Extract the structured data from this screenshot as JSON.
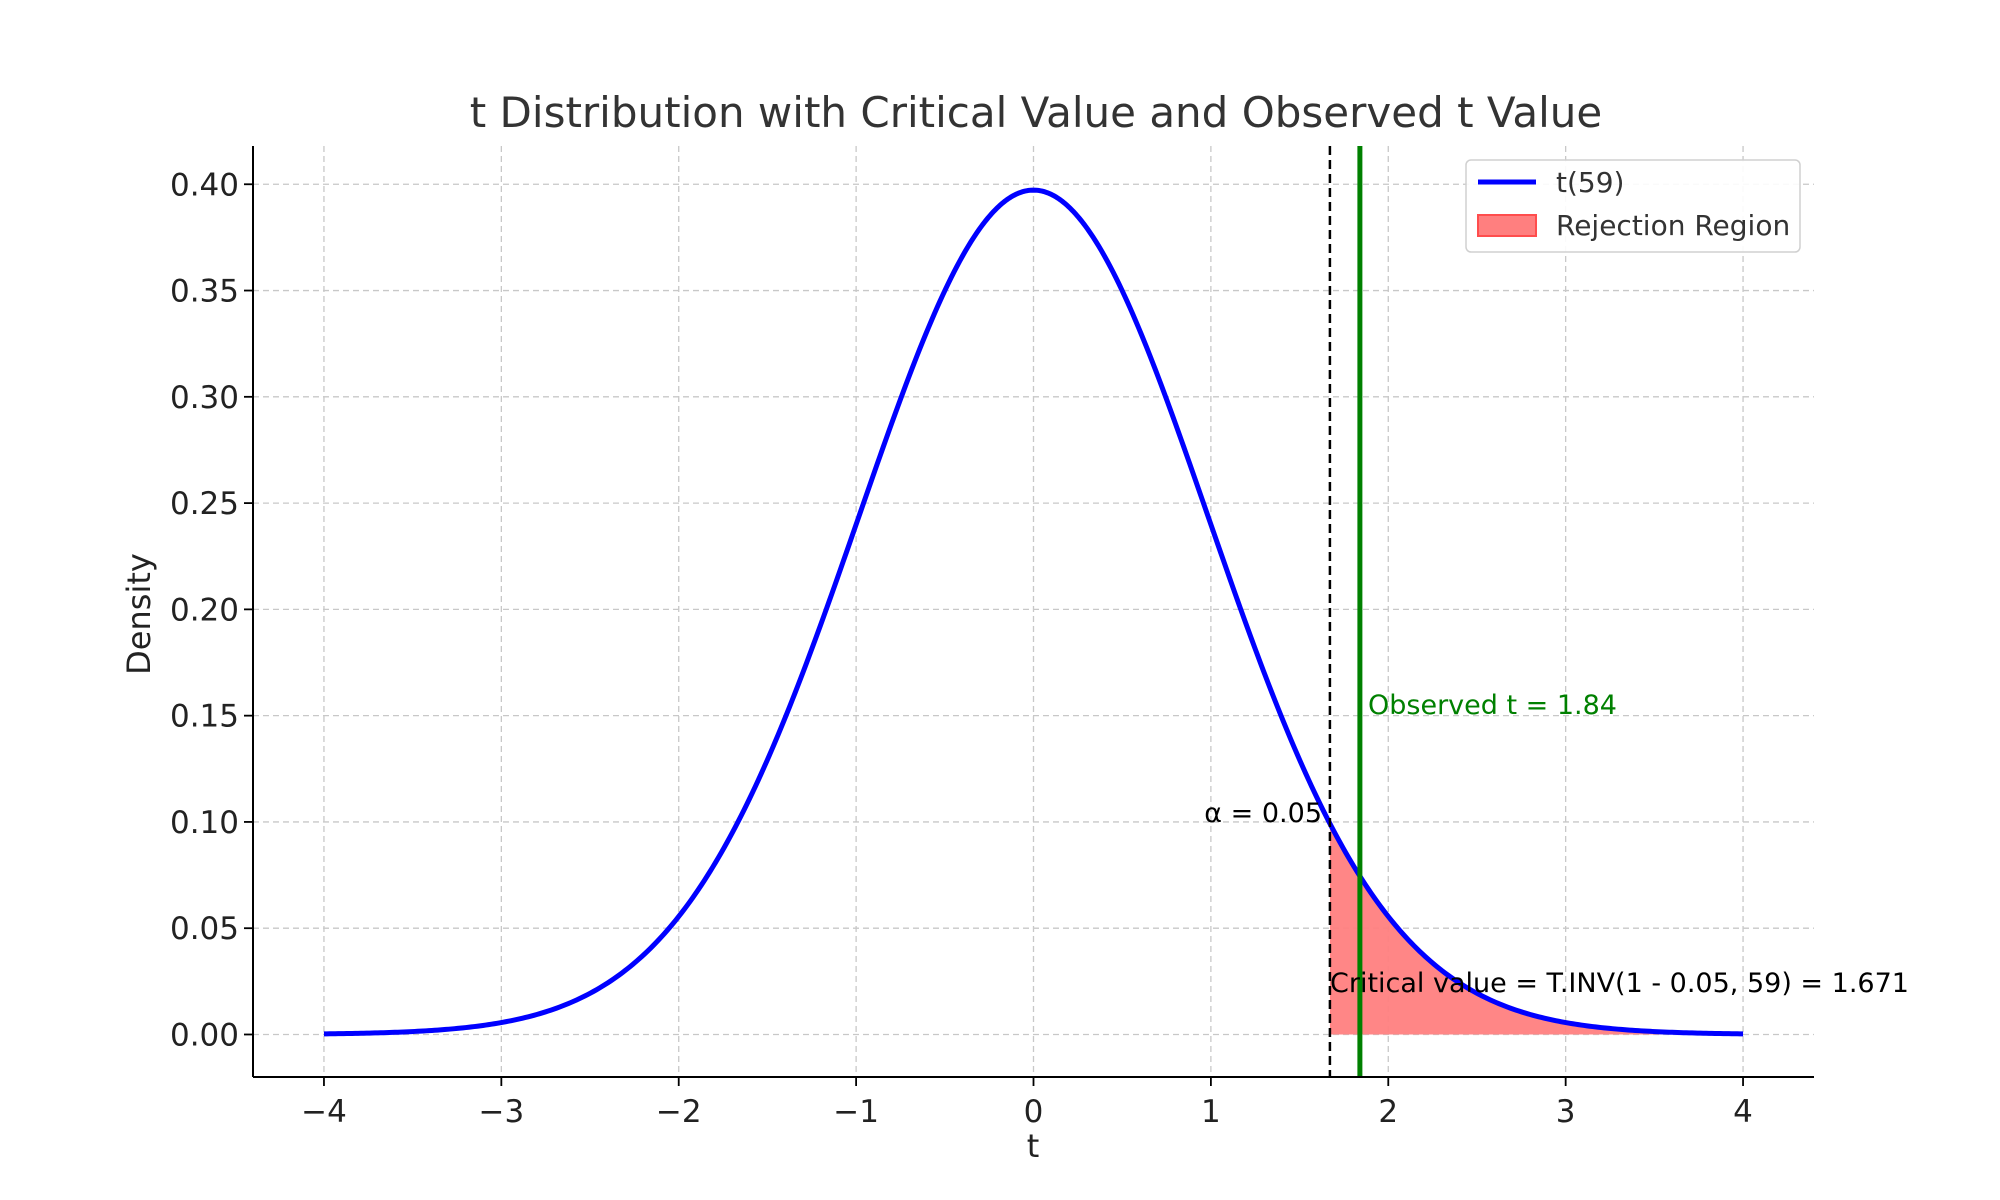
{
  "chart_data": {
    "type": "line",
    "title": "t Distribution with Critical Value and Observed t Value",
    "xlabel": "t",
    "ylabel": "Density",
    "xlim": [
      -4.4,
      4.4
    ],
    "ylim": [
      -0.02,
      0.418
    ],
    "x_ticks": [
      -4,
      -3,
      -2,
      -1,
      0,
      1,
      2,
      3,
      4
    ],
    "x_tick_labels": [
      "−4",
      "−3",
      "−2",
      "−1",
      "0",
      "1",
      "2",
      "3",
      "4"
    ],
    "y_ticks": [
      0.0,
      0.05,
      0.1,
      0.15,
      0.2,
      0.25,
      0.3,
      0.35,
      0.4
    ],
    "y_tick_labels": [
      "0.00",
      "0.05",
      "0.10",
      "0.15",
      "0.20",
      "0.25",
      "0.30",
      "0.35",
      "0.40"
    ],
    "grid": true,
    "legend_position": "top-right",
    "degrees_of_freedom": 59,
    "curve_x_range": [
      -4,
      4
    ],
    "series": [
      {
        "name": "t(59)",
        "kind": "line",
        "color": "#0000ff"
      },
      {
        "name": "Rejection Region",
        "kind": "fill",
        "color": "#ff7f7f",
        "x_from": 1.671,
        "x_to": 4
      }
    ],
    "critical_value": 1.671,
    "observed_t": 1.84,
    "annotations": {
      "alpha": "α = 0.05",
      "observed": "Observed t = 1.84",
      "critical": "Critical value = T.INV(1 - 0.05, 59) = 1.671"
    },
    "colors": {
      "curve": "#0000ff",
      "observed_line": "#008000",
      "critical_line": "#000000",
      "rejection_fill": "#ff7f7f",
      "rejection_edge": "#ff4d4d"
    }
  }
}
